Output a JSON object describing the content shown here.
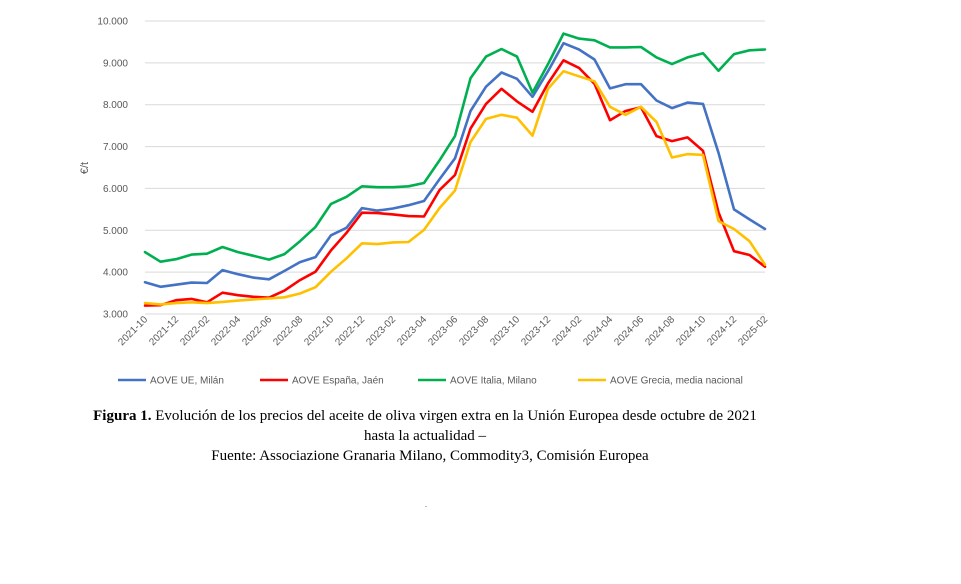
{
  "chart_data": {
    "type": "line",
    "ylabel": "€/t",
    "xlabel": "",
    "ylim": [
      3000,
      10000
    ],
    "yticks": [
      "3.000",
      "4.000",
      "5.000",
      "6.000",
      "7.000",
      "8.000",
      "9.000",
      "10.000"
    ],
    "ytick_values": [
      3000,
      4000,
      5000,
      6000,
      7000,
      8000,
      9000,
      10000
    ],
    "x": [
      "2021-10",
      "2021-11",
      "2021-12",
      "2022-01",
      "2022-02",
      "2022-03",
      "2022-04",
      "2022-05",
      "2022-06",
      "2022-07",
      "2022-08",
      "2022-09",
      "2022-10",
      "2022-11",
      "2022-12",
      "2023-01",
      "2023-02",
      "2023-03",
      "2023-04",
      "2023-05",
      "2023-06",
      "2023-07",
      "2023-08",
      "2023-09",
      "2023-10",
      "2023-11",
      "2023-12",
      "2024-01",
      "2024-02",
      "2024-03",
      "2024-04",
      "2024-05",
      "2024-06",
      "2024-07",
      "2024-08",
      "2024-09",
      "2024-10",
      "2024-11",
      "2024-12",
      "2025-01",
      "2025-02"
    ],
    "xtick_labels": [
      "2021-10",
      "2021-12",
      "2022-02",
      "2022-04",
      "2022-06",
      "2022-08",
      "2022-10",
      "2022-12",
      "2023-02",
      "2023-04",
      "2023-06",
      "2023-08",
      "2023-10",
      "2023-12",
      "2024-02",
      "2024-04",
      "2024-06",
      "2024-08",
      "2024-10",
      "2024-12",
      "2025-02"
    ],
    "grid": true,
    "legend_position": "bottom",
    "series": [
      {
        "name": "AOVE UE, Milán",
        "color": "#4472c4",
        "values": [
          3760,
          3650,
          3700,
          3750,
          3740,
          4050,
          3950,
          3870,
          3830,
          4030,
          4240,
          4360,
          4880,
          5060,
          5530,
          5470,
          5520,
          5600,
          5700,
          6220,
          6720,
          7850,
          8430,
          8770,
          8620,
          8190,
          8800,
          9470,
          9320,
          9080,
          8390,
          8490,
          8490,
          8100,
          7920,
          8050,
          8020,
          6850,
          5500,
          5260,
          5030
        ]
      },
      {
        "name": "AOVE España, Jaén",
        "color": "#ff0000",
        "values": [
          3200,
          3210,
          3330,
          3360,
          3280,
          3510,
          3450,
          3410,
          3390,
          3560,
          3810,
          4010,
          4520,
          4940,
          5420,
          5410,
          5380,
          5340,
          5330,
          5960,
          6320,
          7430,
          8020,
          8380,
          8080,
          7830,
          8510,
          9060,
          8880,
          8500,
          7630,
          7850,
          7940,
          7250,
          7130,
          7220,
          6900,
          5430,
          4500,
          4410,
          4130
        ]
      },
      {
        "name": "AOVE Italia, Milano",
        "color": "#00b050",
        "values": [
          4480,
          4250,
          4310,
          4420,
          4440,
          4600,
          4480,
          4390,
          4300,
          4430,
          4740,
          5080,
          5630,
          5800,
          6050,
          6030,
          6030,
          6050,
          6130,
          6670,
          7250,
          8630,
          9150,
          9330,
          9150,
          8290,
          8970,
          9700,
          9580,
          9540,
          9370,
          9370,
          9380,
          9130,
          8970,
          9130,
          9230,
          8810,
          9210,
          9300,
          9320
        ]
      },
      {
        "name": "AOVE Grecia, media nacional",
        "color": "#ffc000",
        "values": [
          3260,
          3230,
          3260,
          3280,
          3260,
          3290,
          3320,
          3350,
          3370,
          3400,
          3490,
          3640,
          4010,
          4330,
          4690,
          4670,
          4710,
          4720,
          5010,
          5530,
          5950,
          7110,
          7660,
          7760,
          7690,
          7260,
          8380,
          8800,
          8680,
          8560,
          7950,
          7760,
          7950,
          7590,
          6740,
          6820,
          6800,
          5220,
          5030,
          4740,
          4180
        ]
      }
    ]
  },
  "caption": {
    "label": "Figura 1.",
    "line1": "Evolución de los precios del aceite de oliva virgen extra en la Unión Europea desde octubre de 2021",
    "line2": "hasta la actualidad –",
    "line3": "Fuente: Associazione Granaria Milano, Commodity3, Comisión Europea"
  },
  "footnote_mark": "."
}
